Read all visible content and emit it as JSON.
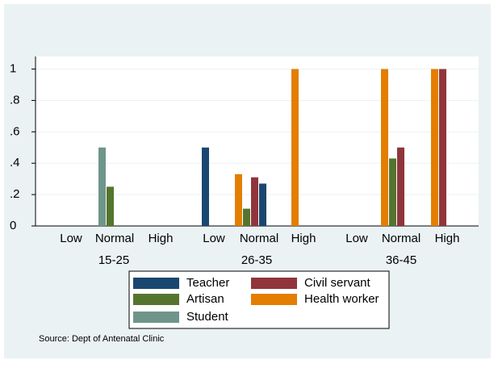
{
  "chart_data": {
    "type": "grouped-bar",
    "groups": [
      "15-25",
      "26-35",
      "36-45"
    ],
    "categories": [
      "Low",
      "Normal",
      "High",
      "Low",
      "Normal",
      "High",
      "Low",
      "Normal",
      "High"
    ],
    "series": [
      {
        "name": "Health worker",
        "color": "#e37e00",
        "values": [
          null,
          null,
          null,
          null,
          0.33,
          1,
          null,
          1,
          1
        ]
      },
      {
        "name": "Student",
        "color": "#6f958a",
        "values": [
          null,
          0.5,
          null,
          null,
          null,
          null,
          null,
          null,
          null
        ]
      },
      {
        "name": "Artisan",
        "color": "#55752f",
        "values": [
          null,
          0.25,
          null,
          null,
          0.11,
          null,
          null,
          0.43,
          null
        ]
      },
      {
        "name": "Civil servant",
        "color": "#90353b",
        "values": [
          null,
          null,
          null,
          null,
          0.31,
          null,
          null,
          0.5,
          1
        ]
      },
      {
        "name": "Teacher",
        "color": "#1a476f",
        "values": [
          null,
          null,
          null,
          0.5,
          0.27,
          null,
          null,
          null,
          null
        ]
      }
    ],
    "ylim": [
      0,
      1.08
    ],
    "yticks": [
      0,
      {
        "value": 0.2,
        "label": ".2"
      },
      {
        "value": 0.4,
        "label": ".4"
      },
      {
        "value": 0.6,
        "label": ".6"
      },
      {
        "value": 0.8,
        "label": ".8"
      },
      1
    ],
    "grid": true,
    "source": "Source: Dept of Antenatal Clinic"
  }
}
